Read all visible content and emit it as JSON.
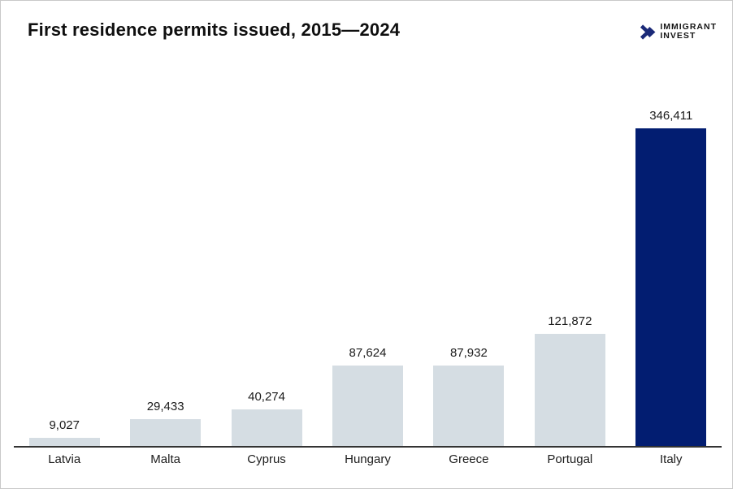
{
  "header": {
    "title": "First residence permits issued, 2015—2024",
    "logo": {
      "line1": "IMMIGRANT",
      "line2": "INVEST",
      "icon": "double-chevron-right-icon",
      "icon_color": "#1b2a78",
      "text_color": "#141414"
    }
  },
  "chart_data": {
    "type": "bar",
    "title": "First residence permits issued, 2015—2024",
    "categories": [
      "Latvia",
      "Malta",
      "Cyprus",
      "Hungary",
      "Greece",
      "Portugal",
      "Italy"
    ],
    "values": [
      9027,
      29433,
      40274,
      87624,
      87932,
      121872,
      346411
    ],
    "value_labels": [
      "9,027",
      "29,433",
      "40,274",
      "87,624",
      "87,932",
      "121,872",
      "346,411"
    ],
    "xlabel": "",
    "ylabel": "",
    "ylim": [
      0,
      346411
    ],
    "grid": false,
    "legend": null,
    "data_labels_position": "above-bars",
    "highlight_category": "Italy",
    "bar_color": "#d5dde3",
    "highlight_color": "#021d71",
    "axis_line_color": "#333333"
  }
}
